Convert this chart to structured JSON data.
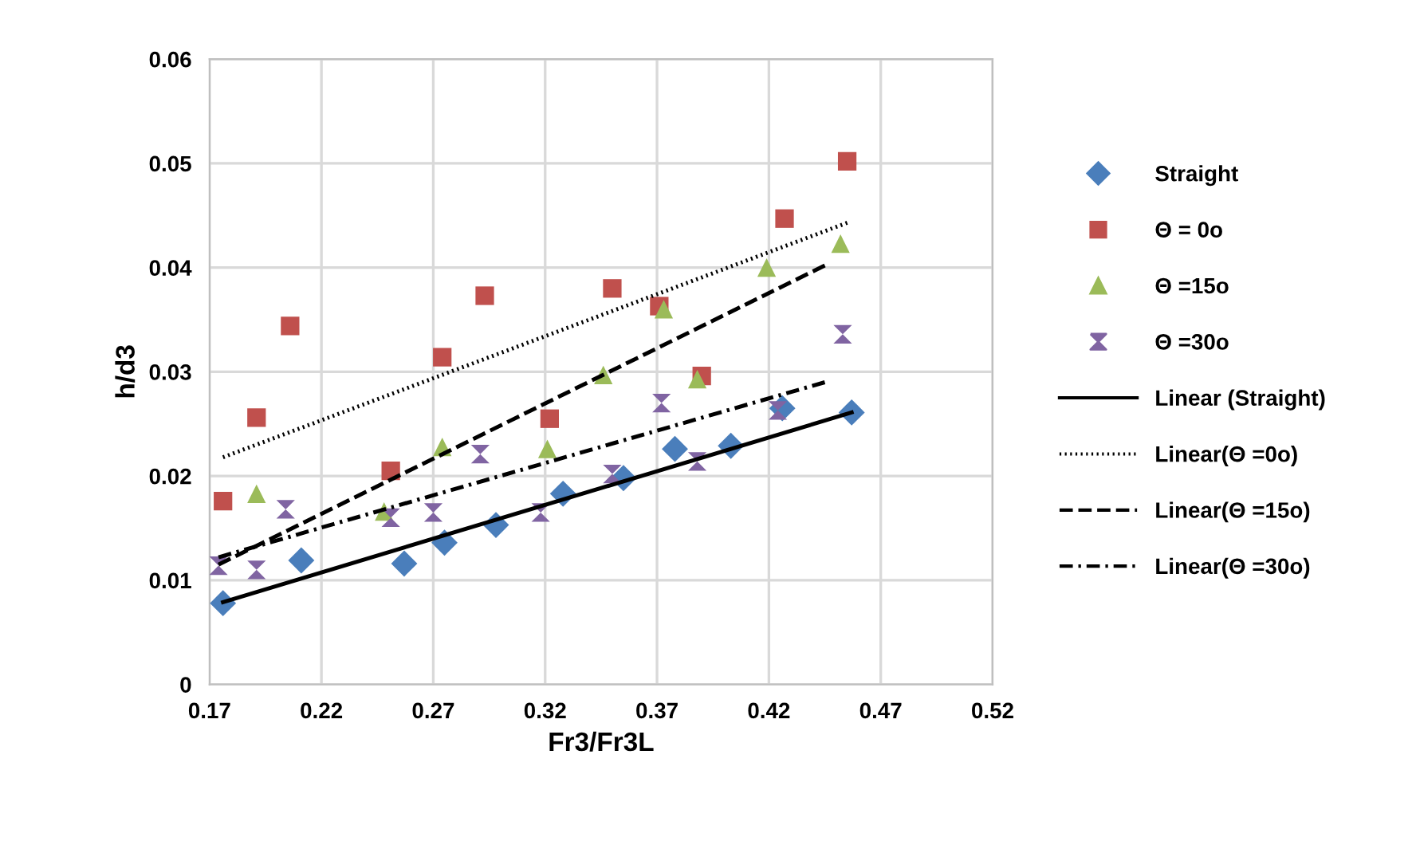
{
  "chart_data": {
    "type": "scatter",
    "xlabel": "Fr3/Fr3L",
    "ylabel": "h/d3",
    "xlim": [
      0.17,
      0.52
    ],
    "xticks": [
      0.17,
      0.22,
      0.27,
      0.32,
      0.37,
      0.42,
      0.47,
      0.52
    ],
    "ylim": [
      0,
      0.06
    ],
    "yticks": [
      0,
      0.01,
      0.02,
      0.03,
      0.04,
      0.05,
      0.06
    ],
    "grid": true,
    "legend": "right",
    "series": [
      {
        "name": "Straight",
        "color": "#4a7ebb",
        "marker": "diamond",
        "x": [
          0.176,
          0.211,
          0.257,
          0.275,
          0.298,
          0.328,
          0.355,
          0.378,
          0.403,
          0.426,
          0.457
        ],
        "values": [
          0.0078,
          0.0119,
          0.0116,
          0.0136,
          0.0153,
          0.0183,
          0.0198,
          0.0226,
          0.0229,
          0.0265,
          0.0261
        ]
      },
      {
        "name": "Θ = 0o",
        "color": "#c0504d",
        "marker": "square",
        "x": [
          0.176,
          0.191,
          0.206,
          0.251,
          0.274,
          0.293,
          0.322,
          0.35,
          0.371,
          0.39,
          0.427,
          0.455
        ],
        "values": [
          0.0176,
          0.0256,
          0.0344,
          0.0205,
          0.0314,
          0.0373,
          0.0255,
          0.038,
          0.0363,
          0.0296,
          0.0447,
          0.0502
        ]
      },
      {
        "name": "Θ =15o",
        "color": "#9bbb59",
        "marker": "triangle",
        "x": [
          0.191,
          0.248,
          0.274,
          0.321,
          0.346,
          0.373,
          0.388,
          0.419,
          0.452
        ],
        "values": [
          0.0183,
          0.0166,
          0.0228,
          0.0226,
          0.0297,
          0.036,
          0.0293,
          0.04,
          0.0423
        ]
      },
      {
        "name": "Θ =30o",
        "color": "#8064a2",
        "x": [
          0.174,
          0.191,
          0.204,
          0.251,
          0.27,
          0.291,
          0.318,
          0.35,
          0.372,
          0.388,
          0.424,
          0.453
        ],
        "values": [
          0.0114,
          0.011,
          0.0168,
          0.016,
          0.0165,
          0.0221,
          0.0165,
          0.0202,
          0.027,
          0.0214,
          0.0263,
          0.0336
        ]
      },
      {
        "name": "Linear (Straight)",
        "type": "line",
        "color": "#000000",
        "line_style": "solid",
        "x": [
          0.176,
          0.457
        ],
        "values": [
          0.0079,
          0.0261
        ]
      },
      {
        "name": "Linear(Θ =0o)",
        "type": "line",
        "color": "#000000",
        "line_style": "dotted",
        "x": [
          0.176,
          0.455
        ],
        "values": [
          0.0218,
          0.0443
        ]
      },
      {
        "name": "Linear(Θ =15o)",
        "type": "line",
        "color": "#000000",
        "line_style": "dashed",
        "x": [
          0.174,
          0.445
        ],
        "values": [
          0.0115,
          0.0402
        ]
      },
      {
        "name": "Linear(Θ =30o)",
        "type": "line",
        "color": "#000000",
        "line_style": "dashdot",
        "x": [
          0.174,
          0.445
        ],
        "values": [
          0.0122,
          0.029
        ]
      }
    ]
  }
}
